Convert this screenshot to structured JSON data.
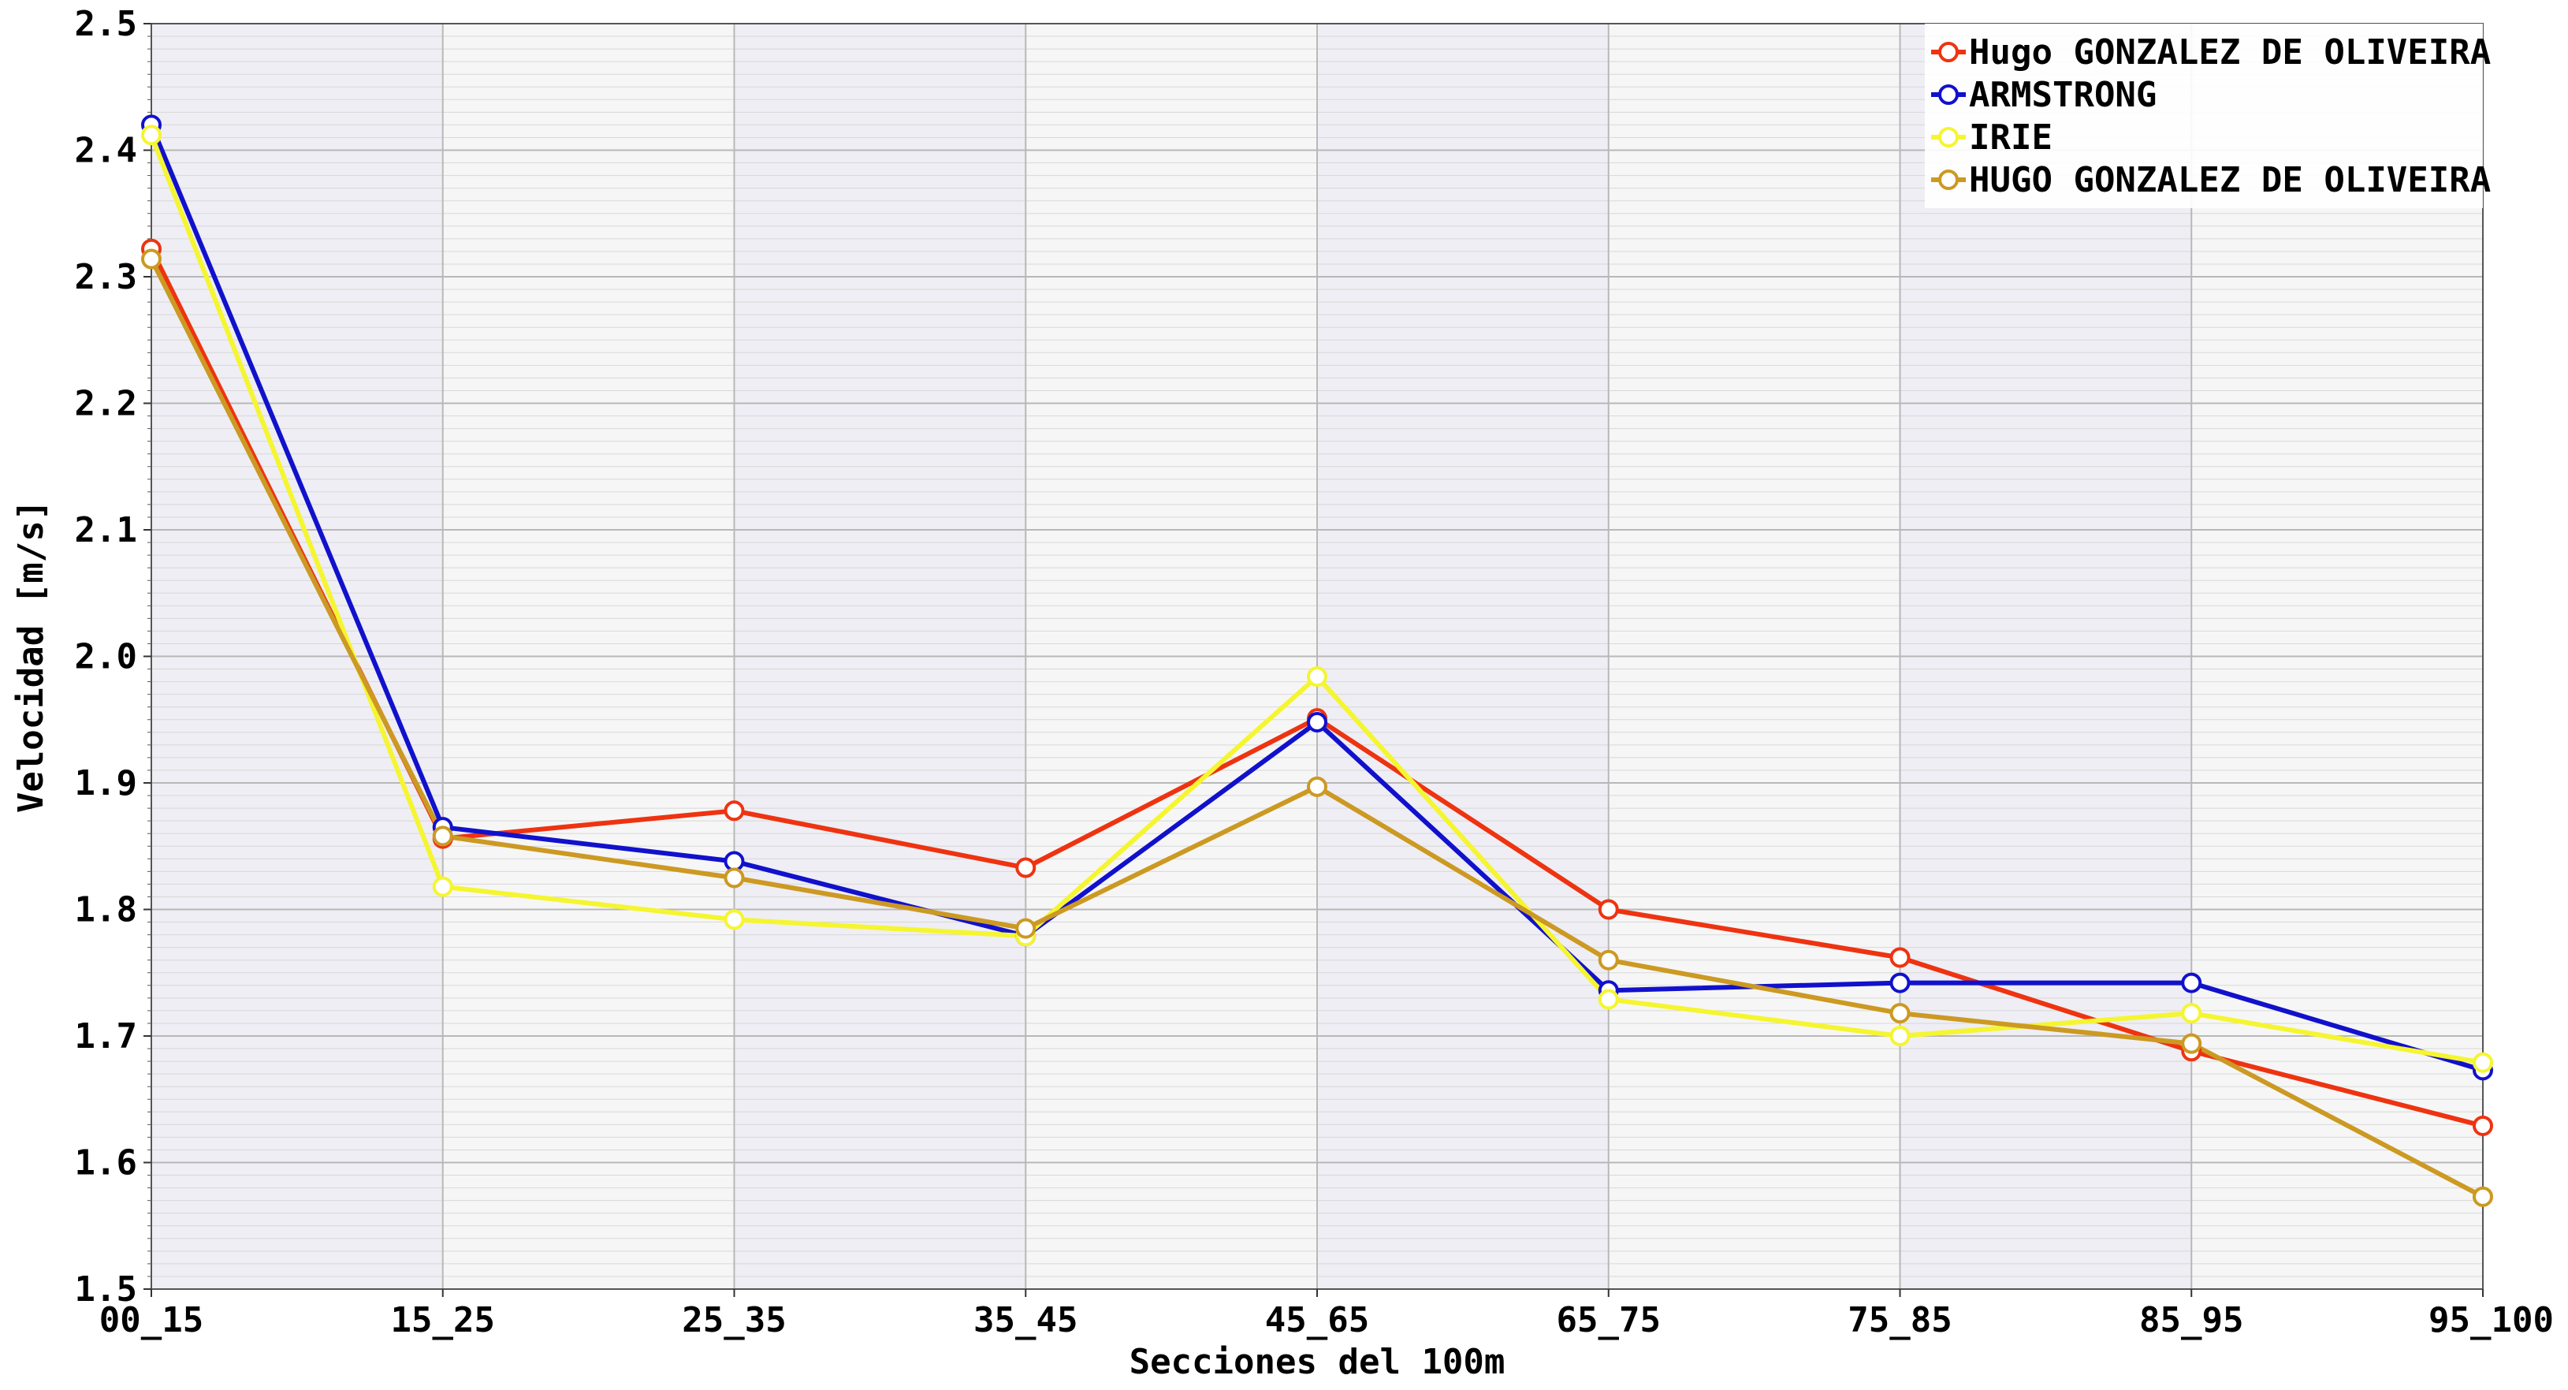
{
  "chart_data": {
    "type": "line",
    "xlabel": "Secciones del 100m",
    "ylabel": "Velocidad [m/s]",
    "categories": [
      "00_15",
      "15_25",
      "25_35",
      "35_45",
      "45_65",
      "65_75",
      "75_85",
      "85_95",
      "95_100"
    ],
    "ylim": [
      1.5,
      2.5
    ],
    "yticks": [
      "1.5",
      "1.6",
      "1.7",
      "1.8",
      "1.9",
      "2.0",
      "2.1",
      "2.2",
      "2.3",
      "2.4",
      "2.5"
    ],
    "grid": true,
    "legend_position": "top-right",
    "series": [
      {
        "name": "Hugo GONZALEZ DE OLIVEIRA",
        "color": "#ee3311",
        "values": [
          2.322,
          1.856,
          1.878,
          1.833,
          1.951,
          1.8,
          1.762,
          1.688,
          1.629
        ]
      },
      {
        "name": "ARMSTRONG",
        "color": "#1111cc",
        "values": [
          2.42,
          1.865,
          1.838,
          1.779,
          1.948,
          1.736,
          1.742,
          1.742,
          1.673
        ]
      },
      {
        "name": "IRIE",
        "color": "#f5f530",
        "values": [
          2.412,
          1.818,
          1.792,
          1.779,
          1.984,
          1.729,
          1.7,
          1.718,
          1.679
        ]
      },
      {
        "name": "HUGO GONZALEZ DE OLIVEIRA",
        "color": "#cc9922",
        "values": [
          2.314,
          1.858,
          1.825,
          1.785,
          1.897,
          1.76,
          1.718,
          1.694,
          1.573
        ]
      }
    ]
  }
}
